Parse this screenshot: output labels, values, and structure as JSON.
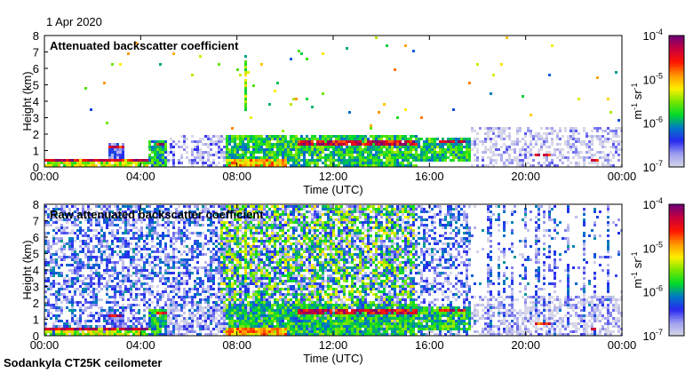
{
  "date_label": "1 Apr 2020",
  "footer": "Sodankyla CT25K ceilometer",
  "colors": {
    "frame": "#000000"
  },
  "chart_data": [
    {
      "type": "heatmap",
      "title": "Attenuated backscatter coefficient",
      "xlabel": "Time (UTC)",
      "ylabel": "Height (km)",
      "xlim_hours": [
        0,
        24
      ],
      "ylim": [
        0,
        8
      ],
      "xticks": [
        "00:00",
        "04:00",
        "08:00",
        "12:00",
        "16:00",
        "20:00",
        "00:00"
      ],
      "yticks": [
        "0",
        "1",
        "2",
        "3",
        "4",
        "5",
        "6",
        "7",
        "8"
      ],
      "colorbar": {
        "label": "m-1 sr-1",
        "scale": "log",
        "range": [
          1e-07,
          0.0001
        ],
        "ticks": [
          "10-7",
          "10-6",
          "10-5",
          "10-4"
        ]
      },
      "noise_density": 0.0,
      "features": [
        {
          "start_h": 0.0,
          "end_h": 4.3,
          "base_km": 0.0,
          "top_km": 0.55,
          "log10": -5.4
        },
        {
          "start_h": 0.0,
          "end_h": 4.3,
          "base_km": 0.35,
          "top_km": 0.6,
          "log10": -4.3
        },
        {
          "start_h": 2.6,
          "end_h": 3.3,
          "base_km": 0.6,
          "top_km": 1.5,
          "log10": -6.5
        },
        {
          "start_h": 2.6,
          "end_h": 3.3,
          "base_km": 1.2,
          "top_km": 1.35,
          "log10": -4.5
        },
        {
          "start_h": 4.3,
          "end_h": 5.0,
          "base_km": 0.0,
          "top_km": 1.7,
          "log10": -5.9
        },
        {
          "start_h": 4.6,
          "end_h": 5.0,
          "base_km": 1.4,
          "top_km": 1.6,
          "log10": -4.4
        },
        {
          "start_h": 5.0,
          "end_h": 7.5,
          "base_km": 0.0,
          "top_km": 2.0,
          "log10": -6.8
        },
        {
          "start_h": 7.5,
          "end_h": 15.5,
          "base_km": 0.0,
          "top_km": 2.0,
          "log10": -5.8
        },
        {
          "start_h": 7.5,
          "end_h": 10.0,
          "base_km": 0.0,
          "top_km": 0.6,
          "log10": -5.0
        },
        {
          "start_h": 10.5,
          "end_h": 15.5,
          "base_km": 1.45,
          "top_km": 1.75,
          "log10": -4.4
        },
        {
          "start_h": 8.3,
          "end_h": 8.4,
          "base_km": 3.5,
          "top_km": 6.5,
          "log10": -5.5
        },
        {
          "start_h": 15.5,
          "end_h": 17.7,
          "base_km": 0.4,
          "top_km": 1.8,
          "log10": -5.8
        },
        {
          "start_h": 16.3,
          "end_h": 17.5,
          "base_km": 1.5,
          "top_km": 1.7,
          "log10": -4.4
        },
        {
          "start_h": 17.7,
          "end_h": 24.0,
          "base_km": 0.0,
          "top_km": 2.5,
          "log10": -6.9
        },
        {
          "start_h": 20.3,
          "end_h": 21.0,
          "base_km": 0.75,
          "top_km": 0.9,
          "log10": -4.5
        },
        {
          "start_h": 22.6,
          "end_h": 23.0,
          "base_km": 0.4,
          "top_km": 0.6,
          "log10": -4.6
        }
      ]
    },
    {
      "type": "heatmap",
      "title": "Raw attenuated backscatter coefficient",
      "xlabel": "Time (UTC)",
      "ylabel": "Height (km)",
      "xlim_hours": [
        0,
        24
      ],
      "ylim": [
        0,
        8
      ],
      "xticks": [
        "00:00",
        "04:00",
        "08:00",
        "12:00",
        "16:00",
        "20:00",
        "00:00"
      ],
      "yticks": [
        "0",
        "1",
        "2",
        "3",
        "4",
        "5",
        "6",
        "7",
        "8"
      ],
      "colorbar": {
        "label": "m-1 sr-1",
        "scale": "log",
        "range": [
          1e-07,
          0.0001
        ],
        "ticks": [
          "10-7",
          "10-6",
          "10-5",
          "10-4"
        ]
      },
      "noise_density": 1.0,
      "features": "same as attenuated backscatter plus background noise"
    }
  ]
}
